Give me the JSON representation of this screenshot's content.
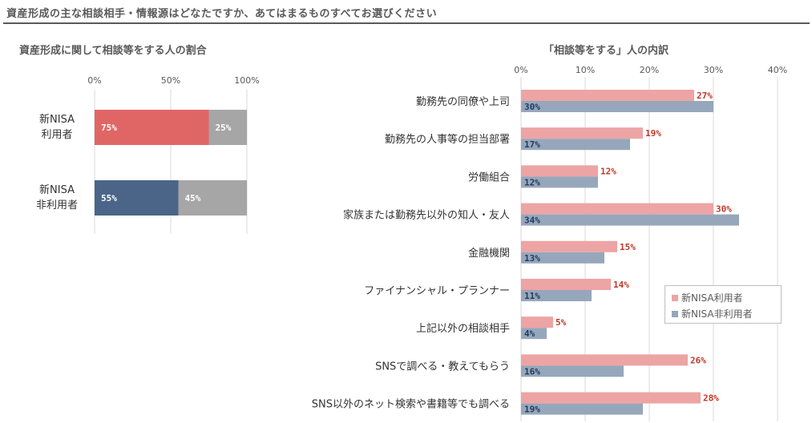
{
  "page_title": "資産形成の主な相談相手・情報源はどなたですか、あてはまるものすべてお選びください",
  "chart_data": [
    {
      "type": "bar",
      "orientation": "horizontal",
      "stacked": true,
      "title": "資産形成に関して相談等をする人の割合",
      "categories": [
        "新NISA\n利用者",
        "新NISA\n非利用者"
      ],
      "category_lines": [
        [
          "新NISA",
          "利用者"
        ],
        [
          "新NISA",
          "非利用者"
        ]
      ],
      "series": [
        {
          "values": [
            75,
            55
          ],
          "labels": [
            "75%",
            "55%"
          ],
          "colors": [
            "#E06666",
            "#4A6587"
          ]
        },
        {
          "values": [
            25,
            45
          ],
          "labels": [
            "25%",
            "45%"
          ],
          "color": "#A6A6A6"
        }
      ],
      "xlim": [
        0,
        100
      ],
      "xticks": [
        0,
        50,
        100
      ],
      "xtick_labels": [
        "0%",
        "50%",
        "100%"
      ],
      "grid": true
    },
    {
      "type": "bar",
      "orientation": "horizontal",
      "title": "「相談等をする」人の内訳",
      "categories": [
        "勤務先の同僚や上司",
        "勤務先の人事等の担当部署",
        "労働組合",
        "家族または勤務先以外の知人・友人",
        "金融機関",
        "ファイナンシャル・プランナー",
        "上記以外の相談相手",
        "SNSで調べる・教えてもらう",
        "SNS以外のネット検索や書籍等でも調べる"
      ],
      "series": [
        {
          "name": "新NISA利用者",
          "values": [
            27,
            19,
            12,
            30,
            15,
            14,
            5,
            26,
            28
          ],
          "labels": [
            "27%",
            "19%",
            "12%",
            "30%",
            "15%",
            "14%",
            "5%",
            "26%",
            "28%"
          ],
          "color": "#EDA4A4"
        },
        {
          "name": "新NISA非利用者",
          "values": [
            30,
            17,
            12,
            34,
            13,
            11,
            4,
            16,
            19
          ],
          "labels": [
            "30%",
            "17%",
            "12%",
            "34%",
            "13%",
            "11%",
            "4%",
            "16%",
            "19%"
          ],
          "color": "#97A7BB"
        }
      ],
      "xlim": [
        0,
        40
      ],
      "xticks": [
        0,
        10,
        20,
        30,
        40
      ],
      "xtick_labels": [
        "0%",
        "10%",
        "20%",
        "30%",
        "40%"
      ],
      "grid": true,
      "legend": "right"
    }
  ]
}
